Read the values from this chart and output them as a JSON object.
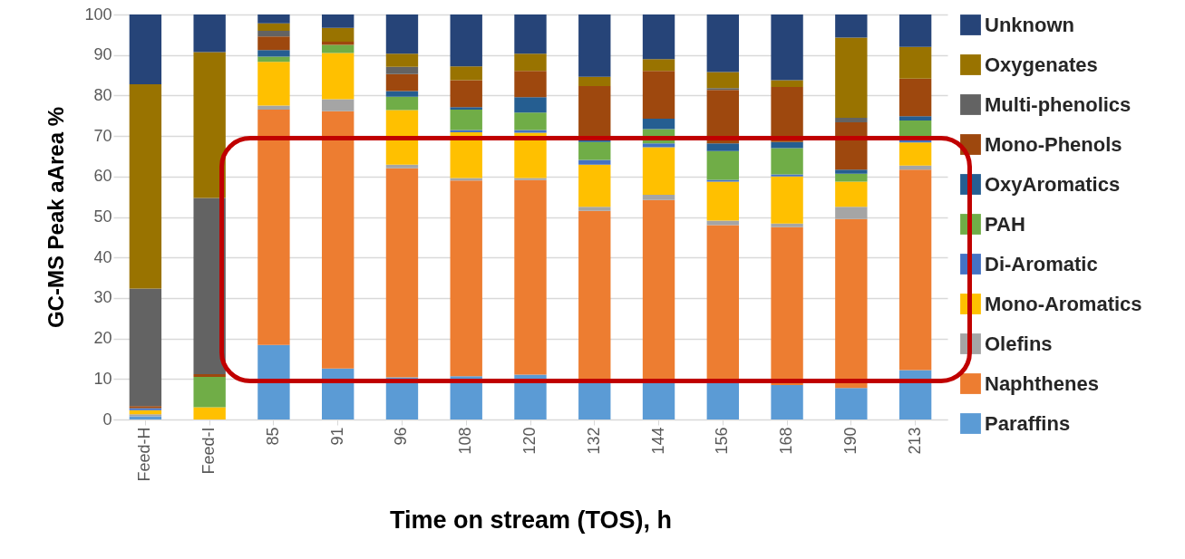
{
  "chart_data": {
    "type": "bar",
    "stacked": true,
    "xlabel": "Time on stream (TOS), h",
    "ylabel": "GC-MS Peak aArea %",
    "categories": [
      "Feed-H",
      "Feed-I",
      "85",
      "91",
      "96",
      "108",
      "120",
      "132",
      "144",
      "156",
      "168",
      "190",
      "213"
    ],
    "ylim": [
      0,
      100
    ],
    "yticks": [
      0,
      10,
      20,
      30,
      40,
      50,
      60,
      70,
      80,
      90,
      100
    ],
    "grid": "y",
    "legend": "right",
    "series": [
      {
        "name": "Paraffins",
        "color": "#5b9bd5",
        "values": [
          0.8,
          0,
          18.4,
          12.6,
          10.4,
          10.7,
          11.1,
          9.5,
          9.5,
          9.5,
          8.5,
          7.8,
          12.2
        ]
      },
      {
        "name": "Naphthenes",
        "color": "#ed7d31",
        "values": [
          0,
          0,
          58.1,
          63.5,
          51.6,
          48.3,
          48,
          42,
          44.7,
          38.5,
          39,
          41.7,
          49.5
        ]
      },
      {
        "name": "Olefins",
        "color": "#a5a5a5",
        "values": [
          0.5,
          0,
          1,
          3,
          0.9,
          0.6,
          0.5,
          1,
          1.3,
          1.1,
          0.9,
          3,
          1
        ]
      },
      {
        "name": "Mono-Aromatics",
        "color": "#ffc000",
        "values": [
          1,
          3,
          10.8,
          11.4,
          13.5,
          11.3,
          11.2,
          10.4,
          11.7,
          9.6,
          11.6,
          6.2,
          5.7
        ]
      },
      {
        "name": "Di-Aromatic",
        "color": "#4472c4",
        "values": [
          0.5,
          0,
          0,
          0,
          0,
          0.6,
          0.7,
          1.2,
          1,
          0.5,
          0.5,
          0,
          0.5
        ]
      },
      {
        "name": "PAH",
        "color": "#70ad47",
        "values": [
          0,
          7.5,
          1.3,
          2,
          3.3,
          5,
          4.3,
          4.4,
          3.5,
          7.1,
          6.5,
          2,
          4.9
        ]
      },
      {
        "name": "OxyAromatics",
        "color": "#255e91",
        "values": [
          0,
          0,
          1.6,
          0,
          1.4,
          0.6,
          3.8,
          0.5,
          2.6,
          1.9,
          1.5,
          1,
          1.1
        ]
      },
      {
        "name": "Mono-Phenols",
        "color": "#9e480e",
        "values": [
          0.5,
          0.7,
          3.4,
          0.8,
          4.2,
          6.7,
          6.5,
          13.3,
          11.8,
          13.2,
          13.6,
          11.7,
          9.3
        ]
      },
      {
        "name": "Multi-phenolics",
        "color": "#636363",
        "values": [
          29,
          43.5,
          1.4,
          0,
          1.8,
          0,
          0,
          0,
          0,
          0.4,
          0,
          1.1,
          0
        ]
      },
      {
        "name": "Oxygenates",
        "color": "#997300",
        "values": [
          50.5,
          36,
          1.8,
          3.4,
          3.2,
          3.4,
          4.2,
          2.3,
          2.9,
          4,
          1.7,
          19.8,
          7.8
        ]
      },
      {
        "name": "Unknown",
        "color": "#264478",
        "values": [
          17.2,
          9.3,
          2.2,
          3.3,
          9.7,
          12.8,
          9.7,
          15.4,
          11,
          14.2,
          16.2,
          5.7,
          8
        ]
      }
    ]
  }
}
